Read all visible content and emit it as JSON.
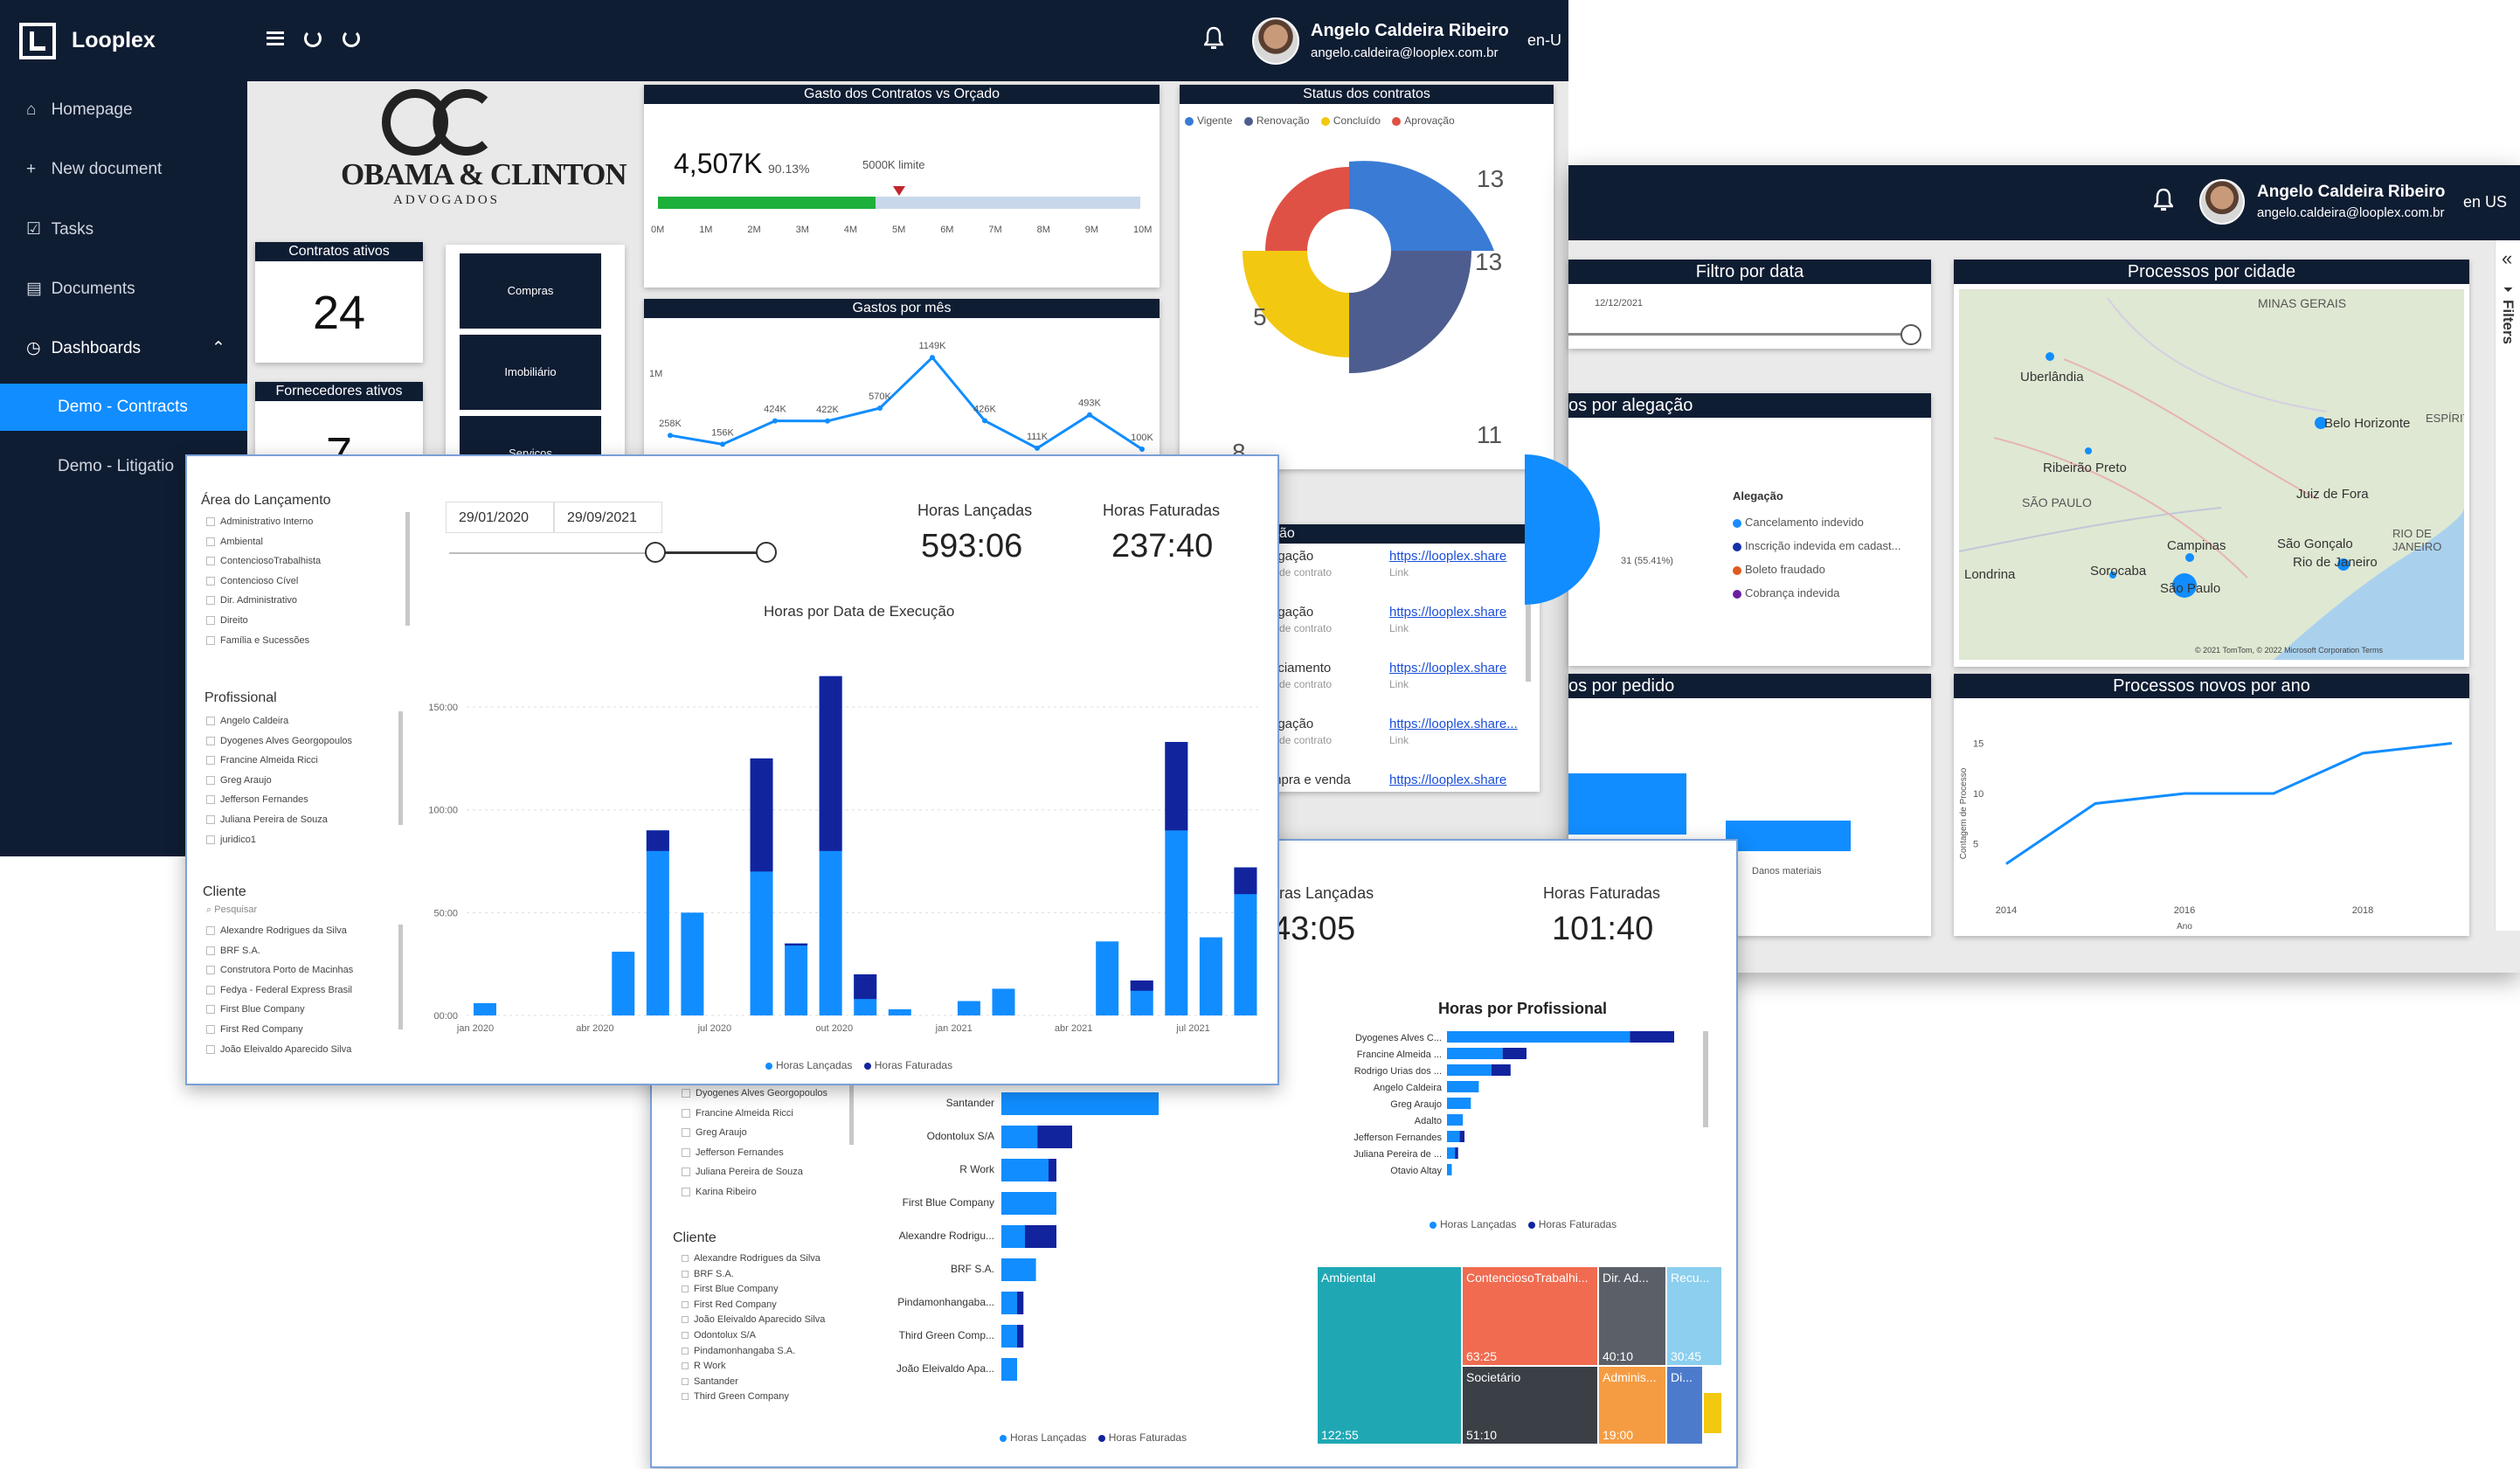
{
  "app": {
    "brand": "Looplex",
    "menu_icons": [
      "menu-icon",
      "refresh-icon",
      "refresh-alt-icon"
    ]
  },
  "user": {
    "name": "Angelo Caldeira Ribeiro",
    "email": "angelo.caldeira@looplex.com.br",
    "locale": "en-U"
  },
  "user2": {
    "name": "Angelo Caldeira Ribeiro",
    "email": "angelo.caldeira@looplex.com.br",
    "locale": "en US"
  },
  "sidebar": {
    "items": [
      {
        "label": "Homepage",
        "icon": "home-icon"
      },
      {
        "label": "New document",
        "icon": "plus-icon"
      },
      {
        "label": "Tasks",
        "icon": "tasks-icon"
      },
      {
        "label": "Documents",
        "icon": "documents-icon"
      },
      {
        "label": "Dashboards",
        "icon": "dashboards-icon"
      },
      {
        "label": "Demo - Contracts",
        "active": true
      },
      {
        "label": "Demo - Litigatio"
      }
    ]
  },
  "contracts": {
    "logo_main": "OBAMA & CLINTON",
    "logo_sub": "ADVOGADOS",
    "kpi1": {
      "title": "Contratos ativos",
      "value": "24"
    },
    "kpi2": {
      "title": "Fornecedores ativos",
      "value": "7"
    },
    "categories": [
      "Compras",
      "Imobiliário",
      "Serviços"
    ],
    "gasto": {
      "title": "Gasto dos Contratos vs Orçado",
      "value": "4,507K",
      "pct": "90.13%",
      "limit_label": "5000K limite",
      "progress": 0.9013,
      "limit": 0.5,
      "ticks": [
        "0M",
        "1M",
        "2M",
        "3M",
        "4M",
        "5M",
        "6M",
        "7M",
        "8M",
        "9M",
        "10M"
      ]
    },
    "gastos_mes": {
      "title": "Gastos por mês",
      "ylabel": "1M",
      "labels": [
        "258K",
        "156K",
        "424K",
        "422K",
        "570K",
        "1149K",
        "426K",
        "111K",
        "493K",
        "100K"
      ],
      "values": [
        258,
        156,
        424,
        422,
        570,
        1149,
        426,
        111,
        493,
        100
      ]
    },
    "status": {
      "title": "Status dos contratos",
      "legend": [
        {
          "label": "Vigente",
          "color": "#3a7bd5"
        },
        {
          "label": "Renovação",
          "color": "#4e5d8f"
        },
        {
          "label": "Concluído",
          "color": "#f2c811"
        },
        {
          "label": "Aprovação",
          "color": "#e05145"
        }
      ],
      "labels": [
        "13",
        "11",
        "8",
        "5"
      ]
    },
    "alegacao_title": "ção",
    "links": [
      {
        "label": "egação",
        "sub": "o de contrato",
        "url": "https://looplex.share",
        "link": "Link"
      },
      {
        "label": "egação",
        "sub": "o de contrato",
        "url": "https://looplex.share",
        "link": "Link"
      },
      {
        "label": "nciamento",
        "sub": "o de contrato",
        "url": "https://looplex.share",
        "link": "Link"
      },
      {
        "label": "egação",
        "sub": "o de contrato",
        "url": "https://looplex.share...",
        "link": "Link"
      },
      {
        "label": "mpra e venda",
        "sub": "",
        "url": "https://looplex.share",
        "link": ""
      }
    ]
  },
  "litigation": {
    "filtro": {
      "title": "Filtro por data",
      "date": "12/12/2021"
    },
    "alegacao": {
      "title": "os por alegação",
      "label": "31 (55.41%)",
      "legend_title": "Alegação",
      "items": [
        {
          "label": "Cancelamento indevido",
          "color": "#1a8cff"
        },
        {
          "label": "Inscrição indevida em cadast...",
          "color": "#1433a8"
        },
        {
          "label": "Boleto fraudado",
          "color": "#e05a1f"
        },
        {
          "label": "Cobrança indevida",
          "color": "#6b1fa0"
        }
      ]
    },
    "cidade": {
      "title": "Processos por cidade",
      "places": [
        "MINAS GERAIS",
        "Uberlândia",
        "Belo Horizonte",
        "ESPÍRITO",
        "Ribeirão Preto",
        "Juiz de Fora",
        "SÃO PAULO",
        "RIO DE JANEIRO",
        "Campinas",
        "São Gonçalo",
        "Rio de Janeiro",
        "Londrina",
        "Sorocaba",
        "São Paulo"
      ],
      "credit": "© 2021 TomTom, © 2022 Microsoft Corporation  Terms"
    },
    "pedido": {
      "title": "os por pedido",
      "bar_label": "Danos materiais"
    },
    "novos": {
      "title": "Processos novos por ano",
      "ylabel": "Contagem de Processo",
      "xlabel": "Ano",
      "yticks": [
        "15",
        "10",
        "5"
      ],
      "xticks": [
        "2014",
        "2016",
        "2018"
      ],
      "x": [
        2014,
        2015,
        2016,
        2017,
        2018,
        2019
      ],
      "y": [
        3,
        9,
        10,
        10,
        14,
        15
      ]
    },
    "filters_label": "Filters"
  },
  "hours": {
    "area": {
      "title": "Área do Lançamento",
      "items": [
        "Administrativo Interno",
        "Ambiental",
        "ContenciosoTrabalhista",
        "Contencioso Cível",
        "Dir. Administrativo",
        "Direito",
        "Família e Sucessões"
      ]
    },
    "profissional": {
      "title": "Profissional",
      "items": [
        "Angelo Caldeira",
        "Dyogenes Alves Georgopoulos",
        "Francine Almeida Ricci",
        "Greg Araujo",
        "Jefferson Fernandes",
        "Juliana Pereira de Souza",
        "juridico1"
      ]
    },
    "cliente": {
      "title": "Cliente",
      "search": "Pesquisar",
      "items": [
        "Alexandre Rodrigues da Silva",
        "BRF S.A.",
        "Construtora Porto de Macinhas",
        "Fedya - Federal Express Brasil",
        "First Blue Company",
        "First Red Company",
        "João Eleivaldo Aparecido Silva"
      ]
    },
    "date_from": "29/01/2020",
    "date_to": "29/09/2021",
    "horas_lancadas": {
      "label": "Horas Lançadas",
      "value": "593:06"
    },
    "horas_faturadas": {
      "label": "Horas Faturadas",
      "value": "237:40"
    },
    "chart": {
      "title": "Horas por Data de Execução",
      "yticks": [
        "150:00",
        "100:00",
        "50:00",
        "00:00"
      ],
      "xticks": [
        "jan 2020",
        "abr 2020",
        "jul 2020",
        "out 2020",
        "jan 2021",
        "abr 2021",
        "jul 2021"
      ],
      "legend": [
        "Horas Lançadas",
        "Horas Faturadas"
      ]
    }
  },
  "hours2": {
    "horas_lancadas": {
      "label": "oras Lançadas",
      "value": "43:05"
    },
    "horas_faturadas": {
      "label": "Horas Faturadas",
      "value": "101:40"
    },
    "prof_list": [
      "Dyogenes Alves Georgopoulos",
      "Francine Almeida Ricci",
      "Greg Araujo",
      "Jefferson Fernandes",
      "Juliana Pereira de Souza",
      "Karina Ribeiro"
    ],
    "cliente_title": "Cliente",
    "cliente_list": [
      "Alexandre Rodrigues da Silva",
      "BRF S.A.",
      "First Blue Company",
      "First Red Company",
      "João Eleivaldo Aparecido Silva",
      "Odontolux S/A",
      "Pindamonhangaba S.A.",
      "R Work",
      "Santander",
      "Third Green Company"
    ],
    "cliente_bars": {
      "labels": [
        "Santander",
        "Odontolux S/A",
        "R Work",
        "First Blue Company",
        "Alexandre Rodrigu...",
        "BRF S.A.",
        "Pindamonhangaba...",
        "Third Green Comp...",
        "João Eleivaldo Apa..."
      ],
      "lanc": [
        100,
        45,
        35,
        35,
        35,
        22,
        14,
        14,
        10
      ],
      "fat": [
        0,
        22,
        5,
        0,
        20,
        0,
        4,
        4,
        0
      ]
    },
    "prof_chart": {
      "title": "Horas por Profissional",
      "labels": [
        "Dyogenes Alves C...",
        "Francine Almeida ...",
        "Rodrigo Urias dos ...",
        "Angelo Caldeira",
        "Greg Araujo",
        "Adalto",
        "Jefferson Fernandes",
        "Juliana Pereira de ...",
        "Otavio Altay"
      ],
      "lanc": [
        115,
        35,
        28,
        20,
        15,
        10,
        8,
        5,
        3
      ],
      "fat": [
        30,
        15,
        12,
        0,
        0,
        0,
        3,
        2,
        0
      ]
    },
    "legend": [
      "Horas Lançadas",
      "Horas Faturadas"
    ],
    "treemap": [
      {
        "label": "Ambiental",
        "value": "122:55",
        "color": "#1fa8b4"
      },
      {
        "label": "ContenciosoTrabalhi...",
        "value": "63:25",
        "color": "#f06b50"
      },
      {
        "label": "Dir. Ad...",
        "value": "40:10",
        "color": "#5b6068"
      },
      {
        "label": "Recu...",
        "value": "30:45",
        "color": "#8ccfee"
      },
      {
        "label": "Societário",
        "value": "51:10",
        "color": "#3a4046"
      },
      {
        "label": "Adminis...",
        "value": "19:00",
        "color": "#f59c42"
      },
      {
        "label": "Di...",
        "value": "",
        "color": "#4d7bcc"
      }
    ]
  },
  "colors": {
    "dark": "#0f1d33",
    "accent": "#118dff",
    "navy": "#12239e"
  }
}
